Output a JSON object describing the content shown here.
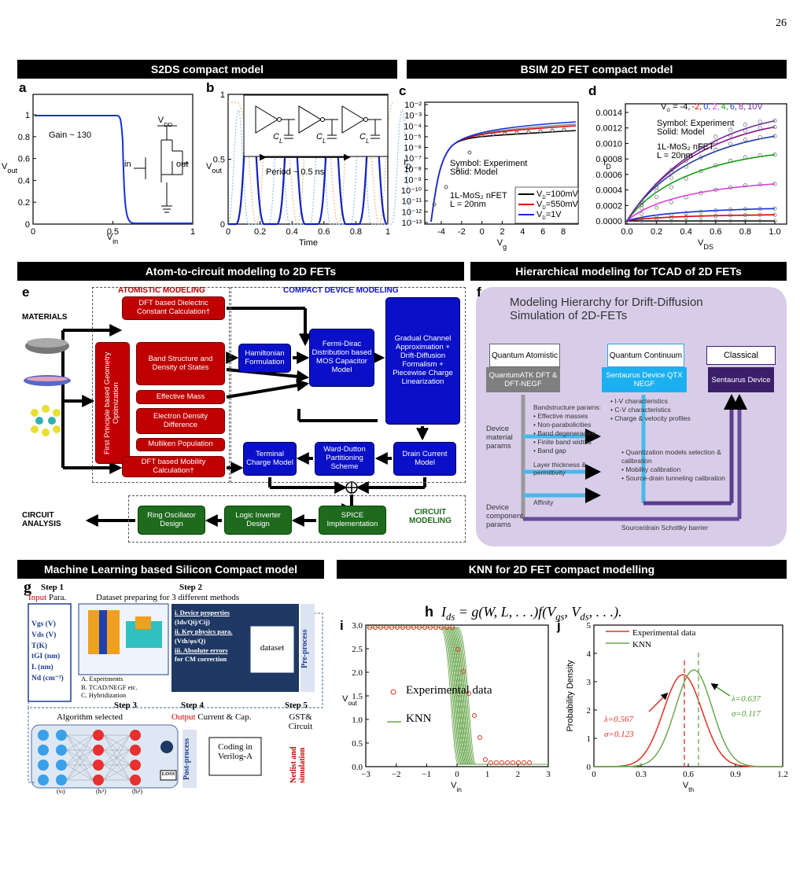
{
  "page_number": "26",
  "headers": [
    "S2DS compact model",
    "BSIM 2D FET compact model",
    "Atom-to-circuit modeling to 2D FETs",
    "Hierarchical modeling for TCAD of 2D FETs",
    "Machine Learning based Silicon Compact model",
    "KNN for 2D FET compact modelling"
  ],
  "a": {
    "letter": "a",
    "gain": "Gain ~ 130",
    "y": "V",
    "y_sub": "out",
    "x": "V",
    "x_sub": "in",
    "vdd": "V",
    "vdd_sub": "DD",
    "in": "in",
    "out": "out",
    "xticks": [
      "0",
      "0.5",
      "1"
    ],
    "yticks": [
      "0",
      "0.2",
      "0.4",
      "0.6",
      "0.8",
      "1"
    ]
  },
  "b": {
    "letter": "b",
    "y": "V",
    "y_sub": "out",
    "x": "Time",
    "period": "Period  ~ 0.5 ns",
    "cl": "C",
    "cl_sub": "L",
    "xticks": [
      "0",
      "0.2",
      "0.4",
      "0.6",
      "0.8",
      "1"
    ],
    "yticks": [
      "0",
      "0.5",
      "1"
    ]
  },
  "c": {
    "letter": "c",
    "y": "I",
    "y_sub": "D",
    "x": "V",
    "x_sub": "g",
    "notes": [
      "Symbol: Experiment",
      "Solid: Model"
    ],
    "device": [
      "1L-MoS₂ nFET",
      "L = 20nm"
    ],
    "legend": [
      {
        "sym": "V",
        "sub": "D",
        "text": "=100mV",
        "color": "#000000"
      },
      {
        "sym": "V",
        "sub": "D",
        "text": "=550mV",
        "color": "#e00000"
      },
      {
        "sym": "V",
        "sub": "D",
        "text": "=1V",
        "color": "#1030e0"
      }
    ],
    "xticks": [
      "-4",
      "-2",
      "0",
      "2",
      "4",
      "6",
      "8"
    ],
    "yticks": [
      "10⁻²",
      "10⁻³",
      "10⁻⁴",
      "10⁻⁵",
      "10⁻⁶",
      "10⁻⁷",
      "10⁻⁸",
      "10⁻⁹",
      "10⁻¹⁰",
      "10⁻¹¹",
      "10⁻¹²",
      "10⁻¹³"
    ]
  },
  "d": {
    "letter": "d",
    "vg": "V",
    "vg_sub": "G",
    "eq": " = ",
    "vg_values": [
      {
        "text": "-4,",
        "color": "#000000"
      },
      {
        "text": "-2,",
        "color": "#e00000"
      },
      {
        "text": "0,",
        "color": "#1030e0"
      },
      {
        "text": "2,",
        "color": "#e040e0"
      },
      {
        "text": "4,",
        "color": "#10a010"
      },
      {
        "text": "6,",
        "color": "#2040a0"
      },
      {
        "text": "8,",
        "color": "#8a1a8a"
      },
      {
        "text": "10V",
        "color": "#6a2aa0"
      }
    ],
    "notes": [
      "Symbol: Experiment",
      "Solid: Model"
    ],
    "device": [
      "1L-MoS₂ nFET",
      "L = 20nm"
    ],
    "y": "I",
    "y_sub": "D",
    "x": "V",
    "x_sub": "DS",
    "xticks": [
      "0.0",
      "0.2",
      "0.4",
      "0.6",
      "0.8",
      "1.0"
    ],
    "yticks": [
      "0.0000",
      "0.0002",
      "0.0004",
      "0.0006",
      "0.0008",
      "0.0010",
      "0.0012",
      "0.0014"
    ]
  },
  "e": {
    "letter": "e",
    "materials": "MATERIALS",
    "atomistic": "ATOMISTIC MODELING",
    "compact": "COMPACT DEVICE MODELING",
    "circuit": "CIRCUIT MODELING",
    "analysis": "CIRCUIT ANALYSIS",
    "boxes": {
      "geom": "First Principle based Geometry Optimization",
      "dielectric": "DFT based Dielectric Constant Calculation†",
      "band": "Band Structure and Density of States",
      "mass": "Effective Mass",
      "density": "Electron Density Difference",
      "mulliken": "Mulliken Population",
      "mobility": "DFT based Mobility Calculation†",
      "hamiltonian": "Hamiltonian Formulation",
      "fermi": "Fermi-Dirac Distribution based MOS Capacitor Model",
      "gradual": "Gradual Channel Approximation + Drift-Diffusion Formalism + Piecewise Charge Linearization",
      "drain": "Drain Current Model",
      "ward": "Ward-Dutton Partitioning Scheme",
      "terminal": "Terminal Charge Model",
      "spice": "SPICE Implementation",
      "inverter": "Logic Inverter Design",
      "ring": "Ring Oscillator Design"
    }
  },
  "f": {
    "letter": "f",
    "title": "Modeling Hierarchy for Drift-Diffusion Simulation of 2D-FETs",
    "qa": "Quantum Atomistic",
    "qa_tool": "QuantumATK DFT & DFT-NEGF",
    "qc": "Quantum Continuum",
    "qc_tool": "Sentaurus Device QTX NEGF",
    "cl": "Classical",
    "cl_tool": "Sentaurus Device",
    "material": "Device material params",
    "component": "Device component params",
    "band_title": "Bandstructure params:",
    "band_items": [
      "Effective masses",
      "Non-parabolicities",
      "Band degeneracies",
      "Finite band widths",
      "Band gap"
    ],
    "layer": "Layer thickness & permittivity",
    "affinity": "Affinity",
    "qc_items": [
      "I-V characteristics",
      "C-V characteristics",
      "Charge & velocity profiles"
    ],
    "cal_items": [
      "Quantization models selection & calibration",
      "Mobility calibration",
      "Source-drain tunneling calibration"
    ],
    "schottky": "Source/drain Schottky barrier"
  },
  "g": {
    "letter": "g",
    "step1": "Step 1",
    "input": "Input",
    "para": " Para.",
    "params": [
      "Vgs (V)",
      "Vds (V)",
      "T(K)",
      "tGI (nm)",
      "L (nm)",
      "Nd (cm⁻³)"
    ],
    "methods": [
      "A.  Experiments",
      "B.  TCAD/NEGF etc.",
      "C.  Hybridization"
    ],
    "step2": "Step 2",
    "dataset_prep": "Dataset preparing for 3 different methods",
    "items": [
      "i. Device properties",
      "(Ids/Qij/Cij)",
      "ii. Key physics para.",
      "(Vth/φs/Q)",
      "iii. Absolute errors",
      "for CM correction"
    ],
    "dataset": "dataset",
    "pre": "Pre-process",
    "step3": "Step 3",
    "algo": "Algorithm selected",
    "step4": "Step 4",
    "output": "Output",
    "output_rest": " Current & Cap.",
    "step5": "Step 5",
    "gst": "GST& Circuit",
    "post": "Post-process",
    "coding": "Coding in Verilog-A",
    "netlist": "Netlist and simulation",
    "loss": "LOSS",
    "layers": [
      "(vₗ)",
      "(hₗ¹)",
      "(hₗ²)"
    ]
  },
  "h": {
    "letter": "h",
    "formula": [
      "I",
      "ds",
      " = g(W, L, . . .)f(V",
      "gs",
      ", V",
      "ds",
      ", . . .)."
    ]
  },
  "i": {
    "letter": "i",
    "xticks": [
      "−3",
      "−2",
      "−1",
      "0",
      "1",
      "2",
      "3"
    ],
    "yticks": [
      "0.0",
      "0.5",
      "1.0",
      "1.5",
      "2.0",
      "2.5",
      "3.0"
    ],
    "legend": [
      "Experimental data",
      "KNN"
    ],
    "x": "V",
    "x_sub": "in",
    "y": "V",
    "y_sub": "out"
  },
  "j": {
    "letter": "j",
    "xticks": [
      "0",
      "0.3",
      "0.6",
      "0.9",
      "1.2"
    ],
    "yticks": [
      "0",
      "1",
      "2",
      "3",
      "4",
      "5"
    ],
    "legend": [
      "Experimental data",
      "KNN"
    ],
    "y": "Probability Density",
    "x": "V",
    "x_sub": "th",
    "red": [
      "λ=0.567",
      "σ=0.123"
    ],
    "green": [
      "λ=0.637",
      "σ=0.117"
    ]
  }
}
